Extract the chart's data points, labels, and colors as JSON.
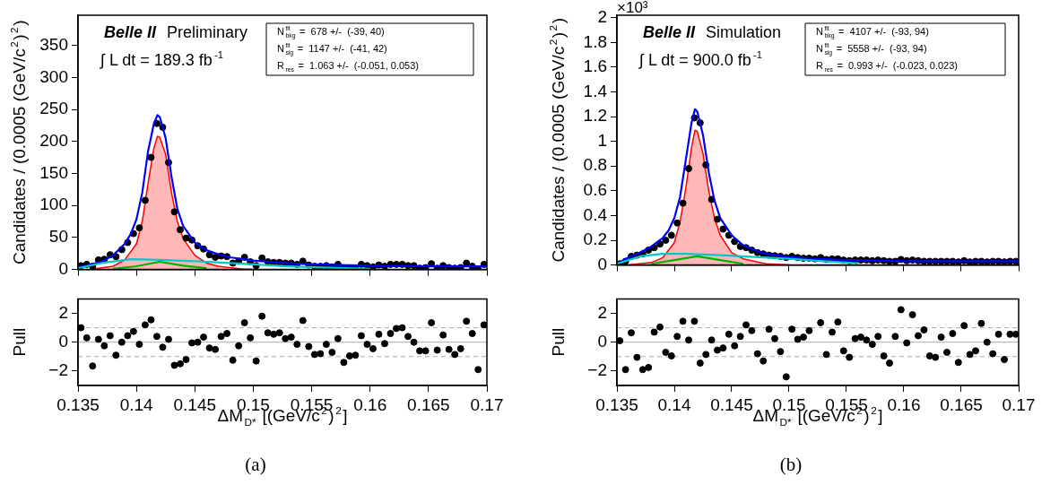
{
  "chart_data": [
    {
      "type": "scatter",
      "ylabel": "Candidates / (0.0005 (GeV/c$^{2}$)$^{2}$)",
      "x": [
        0.13525,
        0.13575,
        0.13625,
        0.13675,
        0.13725,
        0.13775,
        0.13825,
        0.13875,
        0.13925,
        0.13975,
        0.14025,
        0.14075,
        0.14125,
        0.14175,
        0.14225,
        0.14275,
        0.14325,
        0.14375,
        0.14425,
        0.14475,
        0.14525,
        0.14575,
        0.14625,
        0.14675,
        0.14725,
        0.14775,
        0.14825,
        0.14875,
        0.14925,
        0.14975,
        0.15025,
        0.15075,
        0.15125,
        0.15175,
        0.15225,
        0.15275,
        0.15325,
        0.15375,
        0.15425,
        0.15475,
        0.15525,
        0.15575,
        0.15625,
        0.15675,
        0.15725,
        0.15775,
        0.15825,
        0.15875,
        0.15925,
        0.15975,
        0.16025,
        0.16075,
        0.16125,
        0.16175,
        0.16225,
        0.16275,
        0.16325,
        0.16375,
        0.16425,
        0.16475,
        0.16525,
        0.16575,
        0.16625,
        0.16675,
        0.16725,
        0.16775,
        0.16825,
        0.16875,
        0.16925,
        0.16975
      ],
      "series": [
        {
          "type": "scatter",
          "color": "#000000",
          "marker": "circle",
          "values": [
            6,
            8,
            5,
            15,
            16,
            23,
            20,
            31,
            42,
            56,
            65,
            108,
            175,
            228,
            222,
            167,
            90,
            62,
            49,
            46,
            37,
            32,
            23,
            19,
            21,
            20,
            10,
            13,
            19,
            12,
            6,
            18,
            12,
            11,
            11,
            10,
            10,
            8,
            13,
            7,
            5,
            5,
            6,
            4,
            8,
            2,
            2,
            2,
            8,
            6,
            4,
            7,
            5,
            8,
            8,
            8,
            6,
            6,
            2,
            3,
            9,
            2,
            6,
            3,
            2,
            3,
            10,
            5,
            0,
            8
          ]
        },
        {
          "type": "line",
          "color": "#0000ff",
          "x": [
            0.135,
            0.137,
            0.138,
            0.139,
            0.1395,
            0.14,
            0.1405,
            0.141,
            0.1415,
            0.1418,
            0.142,
            0.1425,
            0.143,
            0.1435,
            0.144,
            0.145,
            0.146,
            0.147,
            0.148,
            0.15,
            0.152,
            0.155,
            0.16,
            0.165,
            0.17
          ],
          "values": [
            3,
            12,
            22,
            40,
            55,
            78,
            120,
            185,
            228,
            241,
            238,
            205,
            145,
            95,
            68,
            42,
            30,
            24,
            19,
            14,
            11,
            8,
            6,
            5,
            5
          ]
        },
        {
          "type": "area",
          "color": "#ff0000",
          "x": [
            0.136,
            0.138,
            0.139,
            0.14,
            0.1405,
            0.141,
            0.1415,
            0.1418,
            0.142,
            0.1425,
            0.143,
            0.1435,
            0.144,
            0.145,
            0.146,
            0.147,
            0.149,
            0.15
          ],
          "values": [
            0,
            5,
            15,
            40,
            75,
            135,
            190,
            208,
            206,
            180,
            120,
            75,
            48,
            22,
            10,
            5,
            1,
            0
          ]
        },
        {
          "type": "line",
          "color": "#00c8c8",
          "x": [
            0.135,
            0.137,
            0.1395,
            0.142,
            0.145,
            0.148,
            0.15,
            0.153,
            0.156,
            0.16
          ],
          "values": [
            2,
            10,
            16,
            15,
            13,
            10,
            8,
            5,
            3,
            1
          ]
        },
        {
          "type": "line",
          "color": "#00b000",
          "x": [
            0.138,
            0.14,
            0.142,
            0.144,
            0.146
          ],
          "values": [
            1,
            5,
            12,
            6,
            2
          ]
        }
      ],
      "xlim": [
        0.135,
        0.17
      ],
      "xticks": [
        0.135,
        0.14,
        0.145,
        0.15,
        0.155,
        0.16,
        0.165,
        0.17
      ],
      "ylim": [
        0,
        397
      ],
      "yticks": [
        0,
        50,
        100,
        150,
        200,
        250,
        300,
        350
      ],
      "tick_labels": "y",
      "annotations": [
        "Belle II",
        "Preliminary",
        "∫ L dt = 189.3 fb$^{-1}$",
        "N$^{fit}$$_{bkg}$ =  678 +/-  (-39, 40)",
        "N$^{fit}$$_{sig}$ =  1147 +/-  (-41, 42)",
        "R$_{res}$ =  1.063 +/-  (-0.051, 0.053)"
      ]
    },
    {
      "type": "scatter",
      "xlabel": "ΔM$_{D*}$ [(GeV/c$^{2}$)$^{2}$]",
      "ylabel": "Pull",
      "x": [
        0.13525,
        0.13575,
        0.13625,
        0.13675,
        0.13725,
        0.13775,
        0.13825,
        0.13875,
        0.13925,
        0.13975,
        0.14025,
        0.14075,
        0.14125,
        0.14175,
        0.14225,
        0.14275,
        0.14325,
        0.14375,
        0.14425,
        0.14475,
        0.14525,
        0.14575,
        0.14625,
        0.14675,
        0.14725,
        0.14775,
        0.14825,
        0.14875,
        0.14925,
        0.14975,
        0.15025,
        0.15075,
        0.15125,
        0.15175,
        0.15225,
        0.15275,
        0.15325,
        0.15375,
        0.15425,
        0.15475,
        0.15525,
        0.15575,
        0.15625,
        0.15675,
        0.15725,
        0.15775,
        0.15825,
        0.15875,
        0.15925,
        0.15975,
        0.16025,
        0.16075,
        0.16125,
        0.16175,
        0.16225,
        0.16275,
        0.16325,
        0.16375,
        0.16425,
        0.16475,
        0.16525,
        0.16575,
        0.16625,
        0.16675,
        0.16725,
        0.16775,
        0.16825,
        0.16875,
        0.16925,
        0.16975
      ],
      "series": [
        {
          "type": "scatter",
          "color": "#000000",
          "marker": "circle",
          "values": [
            1.0,
            0.3,
            -1.65,
            0.2,
            -0.25,
            0.45,
            -0.9,
            0.0,
            0.45,
            0.75,
            -0.15,
            1.2,
            1.55,
            0.4,
            -0.35,
            0.2,
            -1.6,
            -1.5,
            -1.2,
            -0.05,
            0.0,
            0.35,
            -0.4,
            -0.5,
            0.4,
            0.6,
            -1.25,
            -0.25,
            1.35,
            0.3,
            -1.3,
            1.8,
            0.65,
            0.55,
            0.65,
            0.25,
            0.35,
            -0.15,
            1.5,
            -0.3,
            -0.85,
            -0.8,
            -0.15,
            -0.7,
            0.25,
            -1.4,
            -0.95,
            -0.9,
            0.45,
            -0.15,
            -0.45,
            0.55,
            -0.1,
            0.6,
            0.95,
            1.0,
            0.4,
            0.0,
            -0.6,
            -0.6,
            1.35,
            -0.55,
            0.5,
            -0.5,
            -0.85,
            -0.45,
            1.45,
            0.6,
            -1.9,
            1.2
          ]
        }
      ],
      "xlim": [
        0.135,
        0.17
      ],
      "xticks": [
        0.135,
        0.14,
        0.145,
        0.15,
        0.155,
        0.16,
        0.165,
        0.17
      ],
      "ylim": [
        -3,
        3
      ],
      "yticks": [
        {
          "value": -2,
          "label": "−2"
        },
        0,
        2
      ],
      "ref_lines": [
        {
          "axis": "y",
          "value": 1,
          "line_style": "dashed",
          "color": "#aaaaaa"
        },
        {
          "axis": "y",
          "value": 0,
          "line_style": "solid",
          "color": "#aaaaaa"
        },
        {
          "axis": "y",
          "value": -1,
          "line_style": "dashed",
          "color": "#aaaaaa"
        }
      ],
      "annotations": [
        "(a)"
      ]
    },
    {
      "type": "scatter",
      "ylabel": "Candidates / (0.0005 (GeV/c$^{2}$)$^{2}$)",
      "x": [
        0.13525,
        0.13575,
        0.13625,
        0.13675,
        0.13725,
        0.13775,
        0.13825,
        0.13875,
        0.13925,
        0.13975,
        0.14025,
        0.14075,
        0.14125,
        0.14175,
        0.14225,
        0.14275,
        0.14325,
        0.14375,
        0.14425,
        0.14475,
        0.14525,
        0.14575,
        0.14625,
        0.14675,
        0.14725,
        0.14775,
        0.14825,
        0.14875,
        0.14925,
        0.14975,
        0.15025,
        0.15075,
        0.15125,
        0.15175,
        0.15225,
        0.15275,
        0.15325,
        0.15375,
        0.15425,
        0.15475,
        0.15525,
        0.15575,
        0.15625,
        0.15675,
        0.15725,
        0.15775,
        0.15825,
        0.15875,
        0.15925,
        0.15975,
        0.16025,
        0.16075,
        0.16125,
        0.16175,
        0.16225,
        0.16275,
        0.16325,
        0.16375,
        0.16425,
        0.16475,
        0.16525,
        0.16575,
        0.16625,
        0.16675,
        0.16725,
        0.16775,
        0.16825,
        0.16875,
        0.16925,
        0.16975
      ],
      "series": [
        {
          "type": "scatter",
          "color": "#000000",
          "marker": "circle",
          "values": [
            0.01,
            0.03,
            0.07,
            0.08,
            0.09,
            0.12,
            0.14,
            0.17,
            0.2,
            0.24,
            0.34,
            0.5,
            0.78,
            1.19,
            1.15,
            0.81,
            0.53,
            0.37,
            0.29,
            0.24,
            0.19,
            0.15,
            0.14,
            0.12,
            0.1,
            0.09,
            0.08,
            0.075,
            0.07,
            0.06,
            0.07,
            0.06,
            0.055,
            0.055,
            0.05,
            0.06,
            0.045,
            0.05,
            0.05,
            0.04,
            0.035,
            0.04,
            0.04,
            0.04,
            0.035,
            0.04,
            0.035,
            0.03,
            0.03,
            0.045,
            0.035,
            0.04,
            0.035,
            0.03,
            0.03,
            0.03,
            0.03,
            0.03,
            0.03,
            0.025,
            0.035,
            0.025,
            0.03,
            0.03,
            0.025,
            0.03,
            0.03,
            0.025,
            0.03,
            0.03
          ]
        },
        {
          "type": "line",
          "color": "#0000ff",
          "x": [
            0.135,
            0.136,
            0.137,
            0.138,
            0.139,
            0.1395,
            0.14,
            0.1405,
            0.141,
            0.1415,
            0.1418,
            0.142,
            0.1425,
            0.143,
            0.1435,
            0.144,
            0.145,
            0.146,
            0.147,
            0.148,
            0.15,
            0.152,
            0.155,
            0.16,
            0.165,
            0.17
          ],
          "values": [
            0.01,
            0.06,
            0.1,
            0.15,
            0.22,
            0.28,
            0.38,
            0.55,
            0.85,
            1.15,
            1.26,
            1.24,
            1.05,
            0.75,
            0.52,
            0.38,
            0.24,
            0.16,
            0.12,
            0.09,
            0.065,
            0.05,
            0.04,
            0.03,
            0.03,
            0.03
          ]
        },
        {
          "type": "area",
          "color": "#ff0000",
          "x": [
            0.136,
            0.138,
            0.139,
            0.14,
            0.1405,
            0.141,
            0.1415,
            0.1418,
            0.142,
            0.1425,
            0.143,
            0.1435,
            0.144,
            0.145,
            0.146,
            0.148,
            0.15
          ],
          "values": [
            0,
            0.02,
            0.06,
            0.18,
            0.35,
            0.62,
            0.95,
            1.09,
            1.08,
            0.9,
            0.6,
            0.38,
            0.24,
            0.1,
            0.05,
            0.01,
            0
          ]
        },
        {
          "type": "line",
          "color": "#00c8c8",
          "x": [
            0.135,
            0.137,
            0.139,
            0.141,
            0.144,
            0.147,
            0.15,
            0.153,
            0.156
          ],
          "values": [
            0.01,
            0.07,
            0.09,
            0.09,
            0.08,
            0.065,
            0.05,
            0.03,
            0.015
          ]
        },
        {
          "type": "line",
          "color": "#00b000",
          "x": [
            0.138,
            0.14,
            0.142,
            0.144,
            0.146
          ],
          "values": [
            0.01,
            0.04,
            0.07,
            0.04,
            0.01
          ]
        }
      ],
      "xlim": [
        0.135,
        0.17
      ],
      "xticks": [
        0.135,
        0.14,
        0.145,
        0.15,
        0.155,
        0.16,
        0.165,
        0.17
      ],
      "ylim": [
        0,
        2.02
      ],
      "yticks": [
        0,
        0.2,
        0.4,
        0.6,
        0.8,
        1,
        1.2,
        1.4,
        1.6,
        1.8,
        2
      ],
      "tick_labels": "y",
      "annotations": [
        "Belle II",
        "Simulation",
        "∫ L dt = 900.0 fb$^{-1}$",
        "N$^{fit}$$_{bkg}$ =  4107 +/-  (-93, 94)",
        "N$^{fit}$$_{sig}$ =  5558 +/-  (-93, 94)",
        "R$_{res}$ =  0.993 +/-  (-0.023, 0.023)",
        "×10³"
      ]
    },
    {
      "type": "scatter",
      "xlabel": "ΔM$_{D*}$ [(GeV/c$^{2}$)$^{2}$]",
      "ylabel": "Pull",
      "x": [
        0.13525,
        0.13575,
        0.13625,
        0.13675,
        0.13725,
        0.13775,
        0.13825,
        0.13875,
        0.13925,
        0.13975,
        0.14025,
        0.14075,
        0.14125,
        0.14175,
        0.14225,
        0.14275,
        0.14325,
        0.14375,
        0.14425,
        0.14475,
        0.14525,
        0.14575,
        0.14625,
        0.14675,
        0.14725,
        0.14775,
        0.14825,
        0.14875,
        0.14925,
        0.14975,
        0.15025,
        0.15075,
        0.15125,
        0.15175,
        0.15225,
        0.15275,
        0.15325,
        0.15375,
        0.15425,
        0.15475,
        0.15525,
        0.15575,
        0.15625,
        0.15675,
        0.15725,
        0.15775,
        0.15825,
        0.15875,
        0.15925,
        0.15975,
        0.16025,
        0.16075,
        0.16125,
        0.16175,
        0.16225,
        0.16275,
        0.16325,
        0.16375,
        0.16425,
        0.16475,
        0.16525,
        0.16575,
        0.16625,
        0.16675,
        0.16725,
        0.16775,
        0.16825,
        0.16875,
        0.16925,
        0.16975
      ],
      "series": [
        {
          "type": "scatter",
          "color": "#000000",
          "marker": "circle",
          "values": [
            0.1,
            -1.9,
            0.65,
            -1.05,
            -1.9,
            -1.75,
            0.7,
            1.05,
            -0.7,
            -0.95,
            0.4,
            1.45,
            0.15,
            1.45,
            -1.45,
            -0.85,
            0.15,
            -0.55,
            -0.4,
            0.55,
            -0.25,
            0.4,
            1.2,
            0.8,
            -0.8,
            -1.3,
            0.9,
            0.25,
            -0.65,
            -2.4,
            0.9,
            0.2,
            0.35,
            0.8,
            null,
            1.35,
            -0.85,
            0.7,
            1.4,
            -0.6,
            -1.05,
            0.25,
            0.35,
            0.15,
            -0.15,
            0.4,
            -0.95,
            -1.45,
            0.4,
            2.25,
            -0.05,
            1.9,
            0.45,
            0.85,
            -0.95,
            -1.05,
            0.35,
            -0.7,
            0.6,
            -1.4,
            1.15,
            -0.85,
            -0.6,
            1.3,
            0.0,
            -0.8,
            0.55,
            -1.2,
            0.55,
            0.55
          ]
        }
      ],
      "xlim": [
        0.135,
        0.17
      ],
      "xticks": [
        0.135,
        0.14,
        0.145,
        0.15,
        0.155,
        0.16,
        0.165,
        0.17
      ],
      "ylim": [
        -3,
        3
      ],
      "yticks": [
        {
          "value": -2,
          "label": "−2"
        },
        0,
        2
      ],
      "ref_lines": [
        {
          "axis": "y",
          "value": 1,
          "line_style": "dashed",
          "color": "#aaaaaa"
        },
        {
          "axis": "y",
          "value": 0,
          "line_style": "solid",
          "color": "#aaaaaa"
        },
        {
          "axis": "y",
          "value": -1,
          "line_style": "dashed",
          "color": "#aaaaaa"
        }
      ],
      "annotations": [
        "(b)"
      ]
    }
  ]
}
